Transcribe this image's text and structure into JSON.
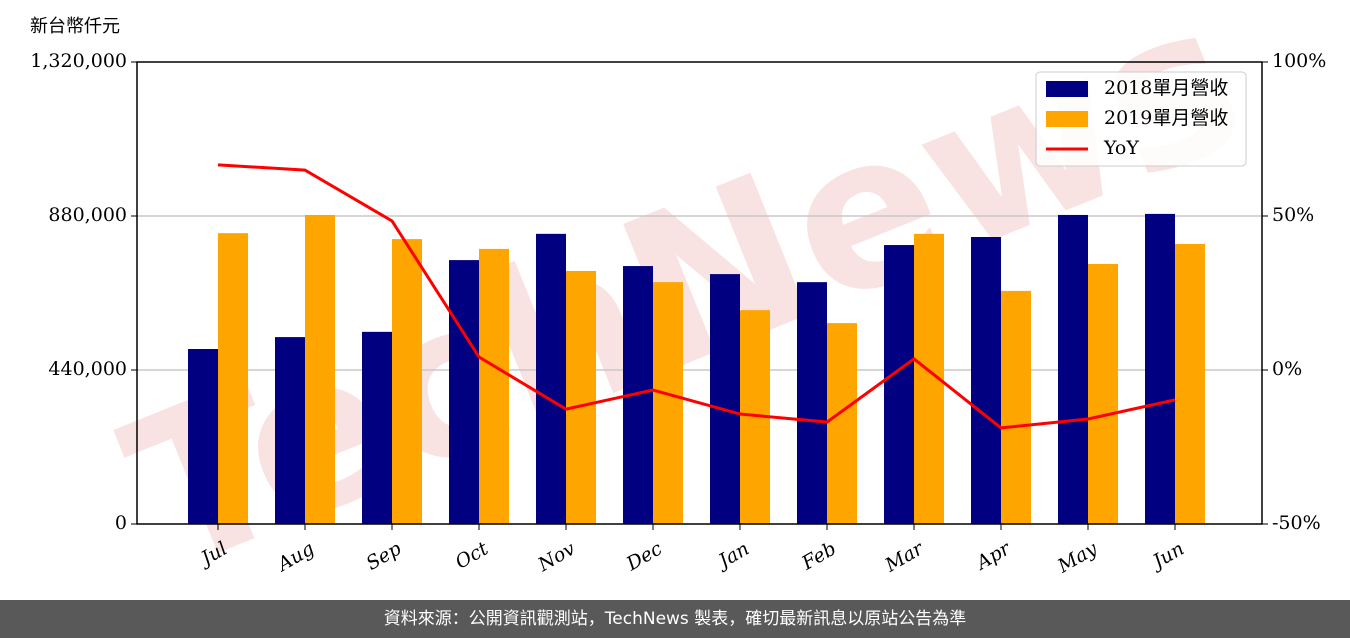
{
  "chart_data": {
    "type": "bar-line",
    "y_label": "新台幣仟元",
    "watermark": "TechNews",
    "categories": [
      "Jul",
      "Aug",
      "Sep",
      "Oct",
      "Nov",
      "Dec",
      "Jan",
      "Feb",
      "Mar",
      "Apr",
      "May",
      "Jun"
    ],
    "series": [
      {
        "name": "2018單月營收",
        "color": "#000080",
        "values": [
          500000,
          534000,
          549000,
          754000,
          829000,
          737000,
          714000,
          691000,
          797000,
          820000,
          883000,
          886000
        ]
      },
      {
        "name": "2019單月營收",
        "color": "#ffa500",
        "values": [
          831000,
          883000,
          814000,
          786000,
          723000,
          691000,
          611000,
          574000,
          829000,
          666000,
          743000,
          800000
        ]
      },
      {
        "name": "YoY",
        "color": "#ff0000",
        "axis": "y2",
        "values": [
          66.6,
          64.9,
          48.4,
          4.2,
          -12.7,
          -6.5,
          -14.3,
          -16.9,
          3.6,
          -18.8,
          -15.9,
          -9.7
        ]
      }
    ],
    "ylim": [
      0,
      1320000
    ],
    "yticks": [
      0,
      {
        "value": 440000,
        "label": "440,000"
      },
      {
        "value": 880000,
        "label": "880,000"
      },
      {
        "value": 1320000,
        "label": "1,320,000"
      }
    ],
    "y2lim": [
      -50,
      100
    ],
    "y2ticks": [
      {
        "value": -50,
        "label": "-50%"
      },
      {
        "value": 0,
        "label": "0%"
      },
      {
        "value": 50,
        "label": "50%"
      },
      {
        "value": 100,
        "label": "100%"
      }
    ],
    "grid": true,
    "legend": "upper right"
  },
  "footer": "資料來源：公開資訊觀測站，TechNews 製表，確切最新訊息以原站公告為準"
}
